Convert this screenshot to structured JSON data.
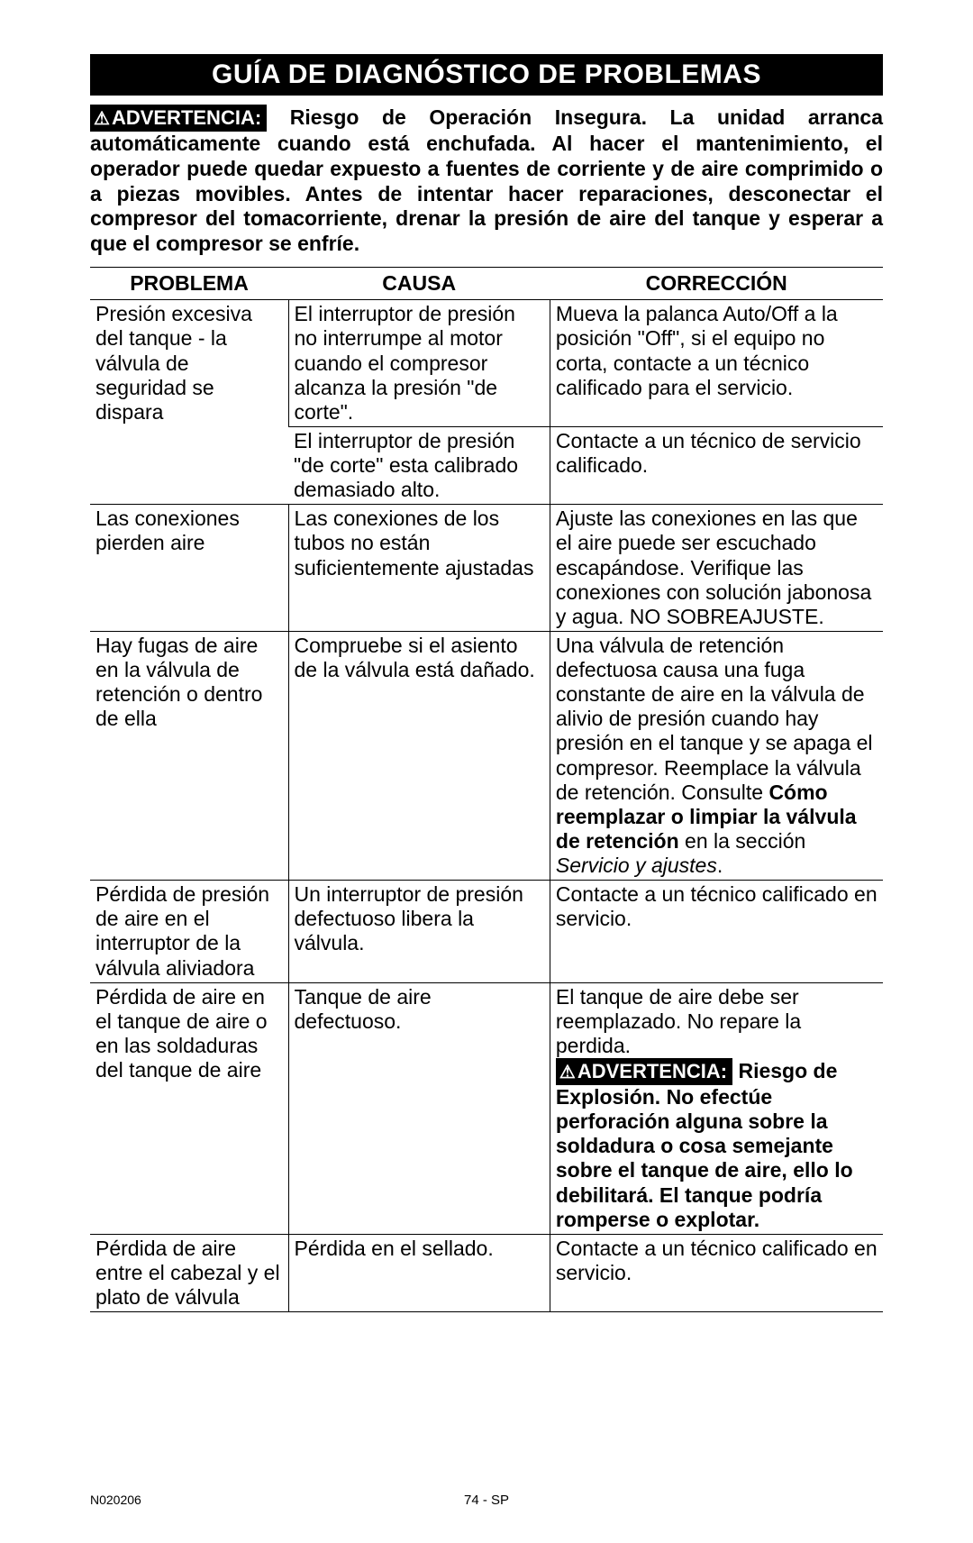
{
  "title": "GUÍA DE DIAGNÓSTICO DE PROBLEMAS",
  "warning_label": "ADVERTENCIA:",
  "intro_text": "Riesgo de Operación Insegura. La unidad arranca automáticamente cuando está enchufada.  Al hacer el mantenimiento, el operador puede quedar expuesto a fuentes de corriente y de aire comprimido o a piezas movibles.  Antes de intentar hacer reparaciones, desconectar el compresor del tomacorriente, drenar la presión de aire del tanque y esperar a que el compresor se enfríe.",
  "headers": {
    "problema": "PROBLEMA",
    "causa": "CAUSA",
    "correccion": "CORRECCIÓN"
  },
  "rows": {
    "r1": {
      "problema": "Presión excesiva del tanque - la válvula de seguridad se dispara",
      "causa": "El interruptor de presión no interrumpe al motor cuando el compresor alcanza la presión \"de corte\".",
      "correccion": "Mueva la palanca Auto/Off a la posición \"Off\", si el equipo no corta, contacte a un técnico calificado para el servicio."
    },
    "r1b": {
      "causa": "El interruptor de presión \"de corte\" esta calibrado demasiado alto.",
      "correccion": "Contacte a un técnico de servicio calificado."
    },
    "r2": {
      "problema": "Las conexiones pierden aire",
      "causa": "Las conexiones de los tubos no están suficientemente ajustadas",
      "correccion": "Ajuste las conexiones en las que el aire puede ser escuchado escapándose. Verifique las conexiones con solución jabonosa y agua. NO SOBREAJUSTE."
    },
    "r3": {
      "problema": "Hay fugas de aire en la válvula de retención o dentro de ella",
      "causa": "Compruebe si el asiento de la válvula está dañado.",
      "correccion_pre": "Una válvula de retención defectuosa causa una fuga constante de aire en la válvula de alivio de presión cuando hay presión en el tanque y se apaga el compresor. Reemplace la válvula de retención. Consulte ",
      "correccion_bold": "Cómo reemplazar o limpiar la válvula de retención",
      "correccion_mid": " en la sección ",
      "correccion_italic": "Servicio y ajustes",
      "correccion_end": "."
    },
    "r4": {
      "problema": "Pérdida de presión de aire en el interruptor de la válvula aliviadora",
      "causa": "Un interruptor de presión defectuoso libera la válvula.",
      "correccion": "Contacte a un técnico calificado en servicio."
    },
    "r5": {
      "problema": "Pérdida de aire en el tanque de aire o en las soldaduras del tanque de aire",
      "causa": "Tanque de aire defectuoso.",
      "correccion_pre": "El tanque de aire debe ser reemplazado. No repare la perdida.",
      "warn_bold": "Riesgo de Explosión. No efectúe perforación alguna sobre la soldadura o cosa semejante sobre el tanque de aire, ello lo debilitará. El tanque podría romperse o explotar."
    },
    "r6": {
      "problema": "Pérdida de aire entre el cabezal y el plato de válvula",
      "causa": "Pérdida en el sellado.",
      "correccion": "Contacte a un técnico calificado en servicio."
    }
  },
  "footer": {
    "left": "N020206",
    "center": "74 - SP"
  }
}
